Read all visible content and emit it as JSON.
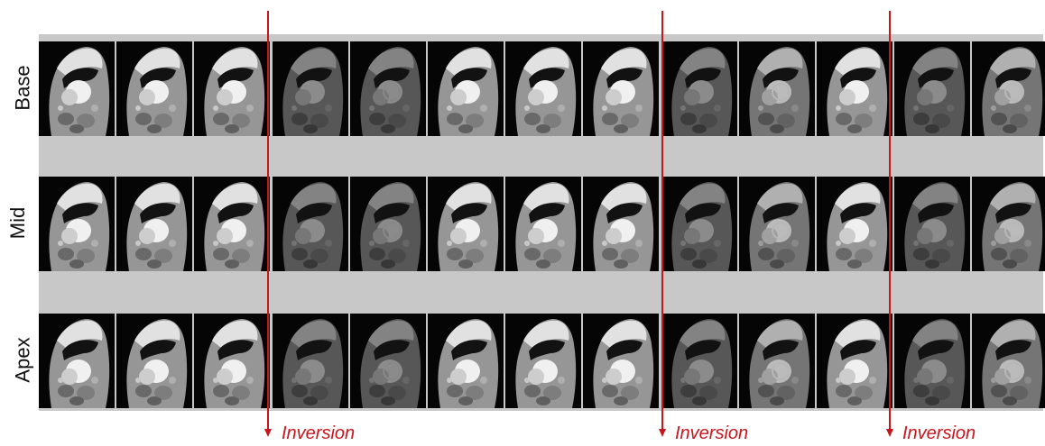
{
  "rows": [
    {
      "label": "Base"
    },
    {
      "label": "Mid"
    },
    {
      "label": "Apex"
    }
  ],
  "frames_per_row": 13,
  "frame_appearance": [
    {
      "contrast": "bright",
      "ring": false
    },
    {
      "contrast": "bright",
      "ring": false
    },
    {
      "contrast": "bright",
      "ring": false
    },
    {
      "contrast": "dark",
      "ring": false
    },
    {
      "contrast": "dark",
      "ring": true
    },
    {
      "contrast": "bright",
      "ring": false
    },
    {
      "contrast": "bright",
      "ring": false
    },
    {
      "contrast": "bright",
      "ring": false
    },
    {
      "contrast": "dark",
      "ring": false
    },
    {
      "contrast": "mid",
      "ring": true
    },
    {
      "contrast": "bright",
      "ring": false
    },
    {
      "contrast": "dark",
      "ring": false
    },
    {
      "contrast": "mid",
      "ring": true
    }
  ],
  "inversions": [
    {
      "label": "Inversion",
      "after_frame": 3
    },
    {
      "label": "Inversion",
      "after_frame": 8
    },
    {
      "label": "Inversion",
      "after_frame": 11
    }
  ],
  "colors": {
    "marker": "#c8161d",
    "separator": "#c8c8c8",
    "frame_bg": "#050505"
  }
}
